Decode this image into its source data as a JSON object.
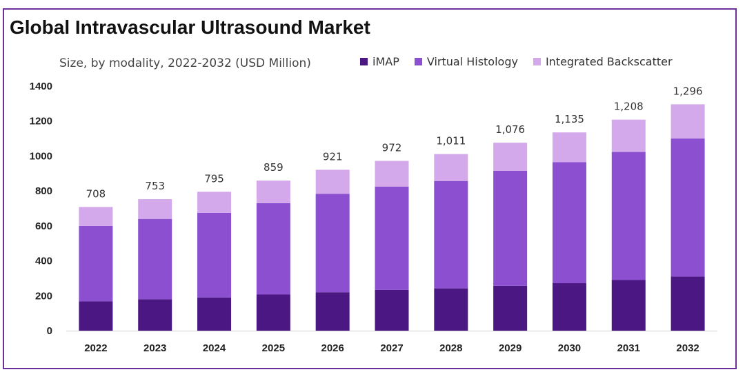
{
  "chart_data": {
    "type": "bar",
    "stacked": true,
    "title": "Global Intravascular Ultrasound Market",
    "subtitle": "Size, by modality, 2022-2032 (USD Million)",
    "xlabel": "",
    "ylabel": "",
    "ylim": [
      0,
      1400
    ],
    "yticks": [
      0,
      200,
      400,
      600,
      800,
      1000,
      1200,
      1400
    ],
    "grid": false,
    "legend_position": "top-right",
    "categories": [
      "2022",
      "2023",
      "2024",
      "2025",
      "2026",
      "2027",
      "2028",
      "2029",
      "2030",
      "2031",
      "2032"
    ],
    "series": [
      {
        "name": "iMAP",
        "color": "#4b1783",
        "values": [
          168,
          180,
          190,
          207,
          220,
          233,
          242,
          257,
          272,
          290,
          310
        ]
      },
      {
        "name": "Virtual Histology",
        "color": "#8b4fd0",
        "values": [
          432,
          460,
          485,
          523,
          563,
          592,
          615,
          658,
          693,
          733,
          790
        ]
      },
      {
        "name": "Integrated Backscatter",
        "color": "#d3a9ec",
        "values": [
          108,
          113,
          120,
          129,
          138,
          147,
          154,
          161,
          170,
          185,
          196
        ]
      }
    ],
    "total_labels": [
      "708",
      "753",
      "795",
      "859",
      "921",
      "972",
      "1,011",
      "1,076",
      "1,135",
      "1,208",
      "1,296"
    ]
  }
}
